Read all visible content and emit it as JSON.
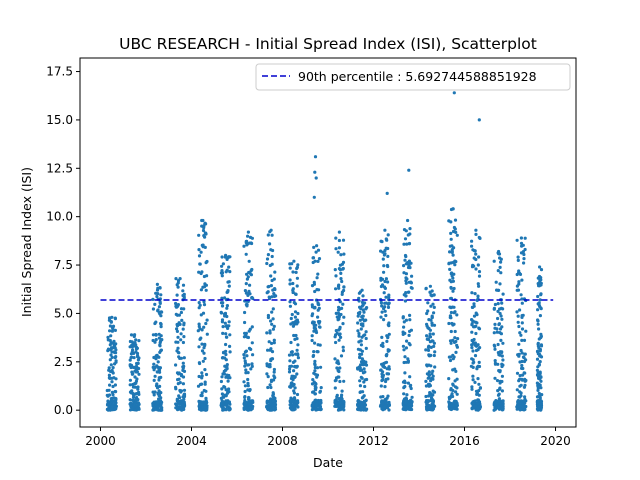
{
  "chart_data": {
    "type": "scatter",
    "title": "UBC RESEARCH - Initial Spread Index (ISI), Scatterplot",
    "xlabel": "Date",
    "ylabel": "Initial Spread Index (ISI)",
    "xlim": [
      1999.1,
      2020.9
    ],
    "ylim": [
      -0.87,
      18.2
    ],
    "xticks": [
      2000,
      2004,
      2008,
      2012,
      2016,
      2020
    ],
    "xtick_labels": [
      "2000",
      "2004",
      "2008",
      "2012",
      "2016",
      "2020"
    ],
    "yticks": [
      0.0,
      2.5,
      5.0,
      7.5,
      10.0,
      12.5,
      15.0,
      17.5
    ],
    "ytick_labels": [
      "0.0",
      "2.5",
      "5.0",
      "7.5",
      "10.0",
      "12.5",
      "15.0",
      "17.5"
    ],
    "grid": false,
    "legend_position": "upper-right",
    "point_color": "#1f77b4",
    "line_color": "#0000cc",
    "reference_line": {
      "label": "90th percentile : 5.692744588851928",
      "y": 5.692744588851928,
      "x_start": 2000.0,
      "x_end": 2019.9
    },
    "seasons": [
      {
        "start": 2000.3,
        "end": 2000.7,
        "max": 4.8
      },
      {
        "start": 2001.3,
        "end": 2001.7,
        "max": 3.9
      },
      {
        "start": 2002.3,
        "end": 2002.7,
        "max": 6.5
      },
      {
        "start": 2003.3,
        "end": 2003.7,
        "max": 6.8
      },
      {
        "start": 2004.3,
        "end": 2004.7,
        "max": 9.8
      },
      {
        "start": 2005.3,
        "end": 2005.7,
        "max": 8.0
      },
      {
        "start": 2006.3,
        "end": 2006.7,
        "max": 9.2
      },
      {
        "start": 2007.3,
        "end": 2007.7,
        "max": 9.3
      },
      {
        "start": 2008.3,
        "end": 2008.7,
        "max": 7.7
      },
      {
        "start": 2009.3,
        "end": 2009.7,
        "max": 8.5
      },
      {
        "start": 2010.3,
        "end": 2010.7,
        "max": 9.2
      },
      {
        "start": 2011.3,
        "end": 2011.7,
        "max": 6.2
      },
      {
        "start": 2012.3,
        "end": 2012.7,
        "max": 9.3
      },
      {
        "start": 2013.3,
        "end": 2013.7,
        "max": 9.8
      },
      {
        "start": 2014.3,
        "end": 2014.7,
        "max": 6.4
      },
      {
        "start": 2015.3,
        "end": 2015.7,
        "max": 10.4
      },
      {
        "start": 2016.3,
        "end": 2016.7,
        "max": 9.3
      },
      {
        "start": 2017.3,
        "end": 2017.7,
        "max": 8.2
      },
      {
        "start": 2018.3,
        "end": 2018.7,
        "max": 8.9
      },
      {
        "start": 2019.2,
        "end": 2019.4,
        "max": 7.4
      }
    ],
    "outliers": [
      {
        "x": 2009.45,
        "y": 13.1
      },
      {
        "x": 2009.42,
        "y": 12.3
      },
      {
        "x": 2009.48,
        "y": 12.0
      },
      {
        "x": 2009.4,
        "y": 11.0
      },
      {
        "x": 2012.6,
        "y": 11.2
      },
      {
        "x": 2013.55,
        "y": 12.4
      },
      {
        "x": 2015.55,
        "y": 16.4
      },
      {
        "x": 2016.65,
        "y": 15.0
      },
      {
        "x": 2004.45,
        "y": 9.8
      },
      {
        "x": 2015.5,
        "y": 10.4
      }
    ]
  }
}
